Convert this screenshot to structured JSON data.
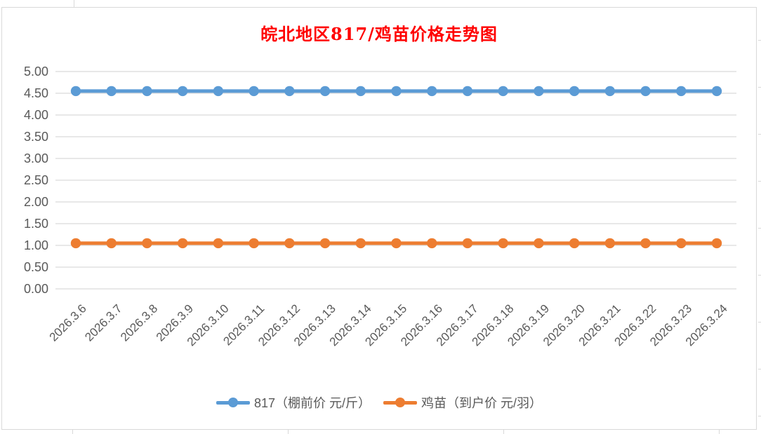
{
  "chart_data": {
    "type": "line",
    "title": "皖北地区817/鸡苗价格走势图",
    "title_color": "#FF0000",
    "categories": [
      "2026.3.6",
      "2026.3.7",
      "2026.3.8",
      "2026.3.9",
      "2026.3.10",
      "2026.3.11",
      "2026.3.12",
      "2026.3.13",
      "2026.3.14",
      "2026.3.15",
      "2026.3.16",
      "2026.3.17",
      "2026.3.18",
      "2026.3.19",
      "2026.3.20",
      "2026.3.21",
      "2026.3.22",
      "2026.3.23",
      "2026.3.24"
    ],
    "series": [
      {
        "name": "817（棚前价 元/斤）",
        "color": "#5B9BD5",
        "values": [
          4.55,
          4.55,
          4.55,
          4.55,
          4.55,
          4.55,
          4.55,
          4.55,
          4.55,
          4.55,
          4.55,
          4.55,
          4.55,
          4.55,
          4.55,
          4.55,
          4.55,
          4.55,
          4.55
        ]
      },
      {
        "name": "鸡苗（到户价 元/羽）",
        "color": "#ED7D31",
        "values": [
          1.05,
          1.05,
          1.05,
          1.05,
          1.05,
          1.05,
          1.05,
          1.05,
          1.05,
          1.05,
          1.05,
          1.05,
          1.05,
          1.05,
          1.05,
          1.05,
          1.05,
          1.05,
          1.05
        ]
      }
    ],
    "ylim": [
      0,
      5
    ],
    "y_ticks": [
      "5.00",
      "4.50",
      "4.00",
      "3.50",
      "3.00",
      "2.50",
      "2.00",
      "1.50",
      "1.00",
      "0.50",
      "0.00"
    ],
    "grid": true,
    "legend_position": "bottom",
    "axis_text_color": "#595959",
    "gridline_color": "#D9D9D9",
    "xlabel": "",
    "ylabel": ""
  }
}
